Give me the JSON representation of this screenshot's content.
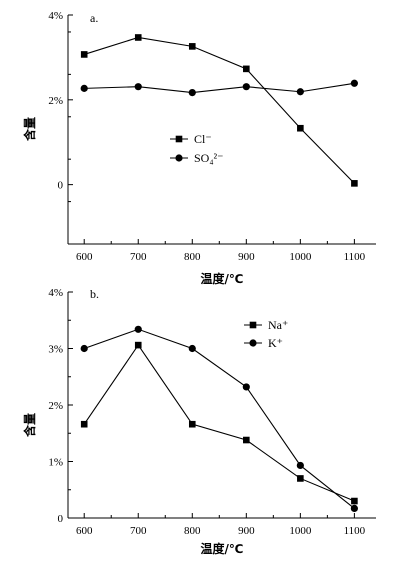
{
  "chart_data": [
    {
      "panel": "a.",
      "type": "line",
      "x": [
        600,
        700,
        800,
        900,
        1000,
        1100
      ],
      "xticks": [
        "600",
        "700",
        "800",
        "900",
        "1000",
        "1100"
      ],
      "xlabel": "温度/℃",
      "ylabel": "含量",
      "yticks": [
        0,
        2,
        4
      ],
      "ytick_labels": [
        "0",
        "2%",
        "4%"
      ],
      "ylim": [
        -1.4,
        4
      ],
      "grid": false,
      "legend_position": "center-left",
      "series": [
        {
          "name": "Cl⁻",
          "marker": "square",
          "values": [
            3.07,
            3.47,
            3.26,
            2.73,
            1.33,
            0.03
          ]
        },
        {
          "name": "SO₄²⁻",
          "marker": "circle",
          "values": [
            2.27,
            2.31,
            2.17,
            2.31,
            2.19,
            2.39
          ]
        }
      ]
    },
    {
      "panel": "b.",
      "type": "line",
      "x": [
        600,
        700,
        800,
        900,
        1000,
        1100
      ],
      "xticks": [
        "600",
        "700",
        "800",
        "900",
        "1000",
        "1100"
      ],
      "xlabel": "温度/℃",
      "ylabel": "含量",
      "yticks": [
        0,
        1,
        2,
        3,
        4
      ],
      "ytick_labels": [
        "0",
        "1%",
        "2%",
        "3%",
        "4%"
      ],
      "ylim": [
        0,
        4
      ],
      "grid": false,
      "legend_position": "top-right",
      "series": [
        {
          "name": "Na⁺",
          "marker": "square",
          "values": [
            1.66,
            3.06,
            1.66,
            1.38,
            0.7,
            0.3
          ]
        },
        {
          "name": "K⁺",
          "marker": "circle",
          "values": [
            3.0,
            3.34,
            3.0,
            2.32,
            0.93,
            0.17
          ]
        }
      ]
    }
  ]
}
